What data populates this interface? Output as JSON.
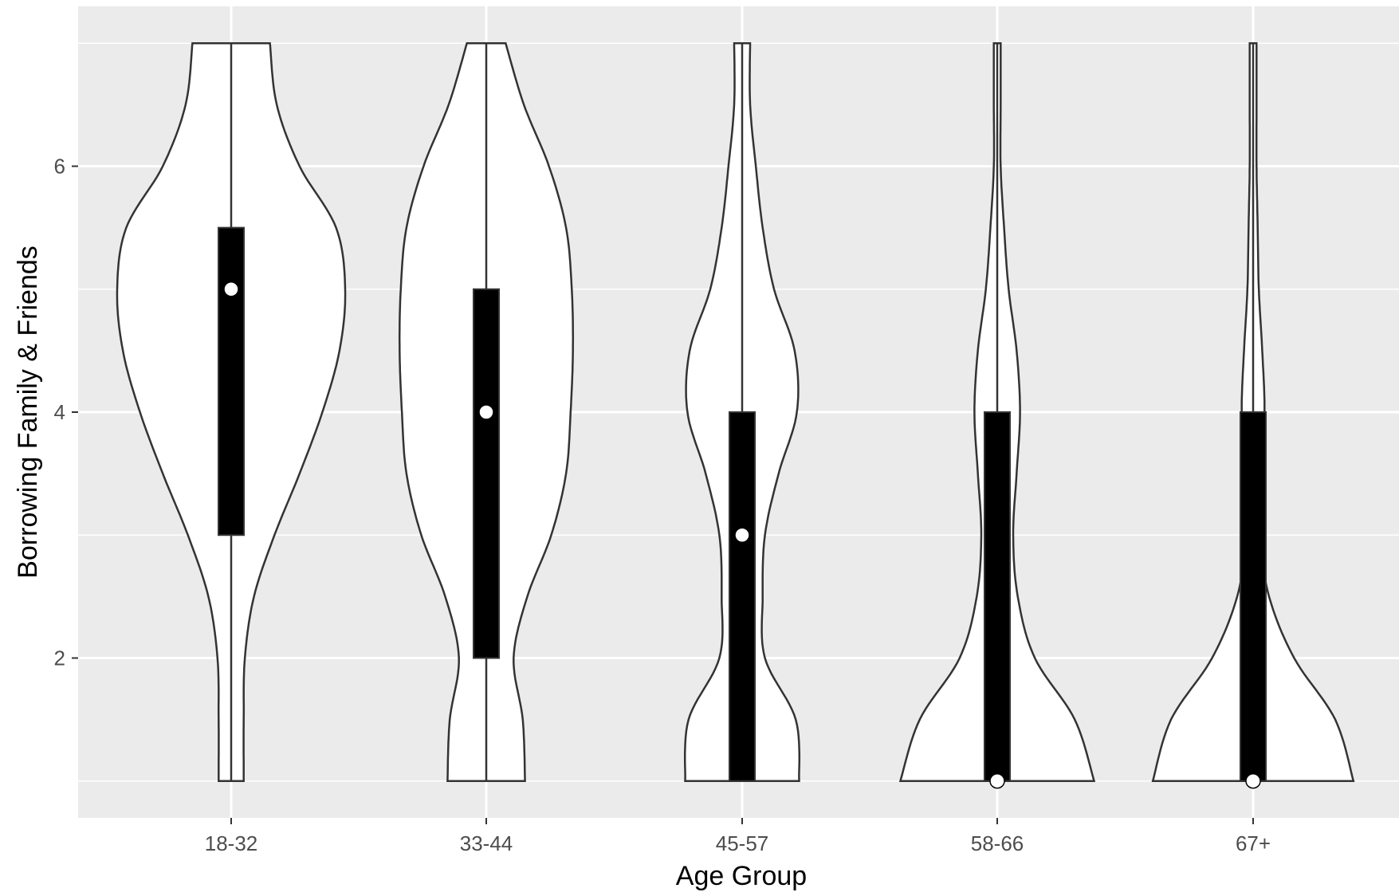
{
  "chart_data": {
    "type": "violin",
    "xlabel": "Age Group",
    "ylabel": "Borrowing Family & Friends",
    "categories": [
      "18-32",
      "33-44",
      "45-57",
      "58-66",
      "67+"
    ],
    "ylim": [
      0.7,
      7.3
    ],
    "yticks": [
      2,
      4,
      6
    ],
    "grid": true,
    "colors": {
      "panel": "#ebebeb",
      "grid": "#ffffff",
      "violin_fill": "#ffffff",
      "violin_stroke": "#333333",
      "box_fill": "#000000",
      "median_dot": "#ffffff"
    },
    "groups": [
      {
        "name": "18-32",
        "box": {
          "min": 1,
          "q1": 3,
          "median": 5,
          "q3": 5.5,
          "max": 7
        },
        "density": [
          [
            1.0,
            0.11
          ],
          [
            1.5,
            0.11
          ],
          [
            2.0,
            0.12
          ],
          [
            2.5,
            0.2
          ],
          [
            3.0,
            0.38
          ],
          [
            3.5,
            0.6
          ],
          [
            4.0,
            0.8
          ],
          [
            4.5,
            0.95
          ],
          [
            5.0,
            1.0
          ],
          [
            5.5,
            0.92
          ],
          [
            6.0,
            0.6
          ],
          [
            6.5,
            0.4
          ],
          [
            7.0,
            0.34
          ]
        ]
      },
      {
        "name": "33-44",
        "box": {
          "min": 1,
          "q1": 2,
          "median": 4,
          "q3": 5,
          "max": 7
        },
        "density": [
          [
            1.0,
            0.34
          ],
          [
            1.5,
            0.32
          ],
          [
            2.0,
            0.24
          ],
          [
            2.5,
            0.36
          ],
          [
            3.0,
            0.57
          ],
          [
            3.5,
            0.7
          ],
          [
            4.0,
            0.74
          ],
          [
            4.5,
            0.76
          ],
          [
            5.0,
            0.75
          ],
          [
            5.5,
            0.7
          ],
          [
            6.0,
            0.55
          ],
          [
            6.5,
            0.33
          ],
          [
            7.0,
            0.17
          ]
        ]
      },
      {
        "name": "45-57",
        "box": {
          "min": 1,
          "q1": 1,
          "median": 3,
          "q3": 4,
          "max": 7
        },
        "density": [
          [
            1.0,
            0.5
          ],
          [
            1.5,
            0.47
          ],
          [
            2.0,
            0.2
          ],
          [
            2.5,
            0.18
          ],
          [
            3.0,
            0.2
          ],
          [
            3.5,
            0.32
          ],
          [
            4.0,
            0.48
          ],
          [
            4.5,
            0.46
          ],
          [
            5.0,
            0.28
          ],
          [
            5.5,
            0.18
          ],
          [
            6.0,
            0.12
          ],
          [
            6.5,
            0.07
          ],
          [
            7.0,
            0.07
          ]
        ]
      },
      {
        "name": "58-66",
        "box": {
          "min": 1,
          "q1": 1,
          "median": 1,
          "q3": 4,
          "max": 7
        },
        "density": [
          [
            1.0,
            0.85
          ],
          [
            1.5,
            0.68
          ],
          [
            2.0,
            0.33
          ],
          [
            2.5,
            0.18
          ],
          [
            3.0,
            0.14
          ],
          [
            3.5,
            0.17
          ],
          [
            4.0,
            0.2
          ],
          [
            4.5,
            0.17
          ],
          [
            5.0,
            0.1
          ],
          [
            5.5,
            0.06
          ],
          [
            6.0,
            0.03
          ],
          [
            6.5,
            0.03
          ],
          [
            7.0,
            0.03
          ]
        ]
      },
      {
        "name": "67+",
        "box": {
          "min": 1,
          "q1": 1,
          "median": 1,
          "q3": 4,
          "max": 7
        },
        "density": [
          [
            1.0,
            0.88
          ],
          [
            1.5,
            0.72
          ],
          [
            2.0,
            0.36
          ],
          [
            2.5,
            0.14
          ],
          [
            3.0,
            0.06
          ],
          [
            3.5,
            0.07
          ],
          [
            4.0,
            0.1
          ],
          [
            4.5,
            0.08
          ],
          [
            5.0,
            0.05
          ],
          [
            5.5,
            0.04
          ],
          [
            6.0,
            0.03
          ],
          [
            6.5,
            0.03
          ],
          [
            7.0,
            0.03
          ]
        ]
      }
    ]
  }
}
